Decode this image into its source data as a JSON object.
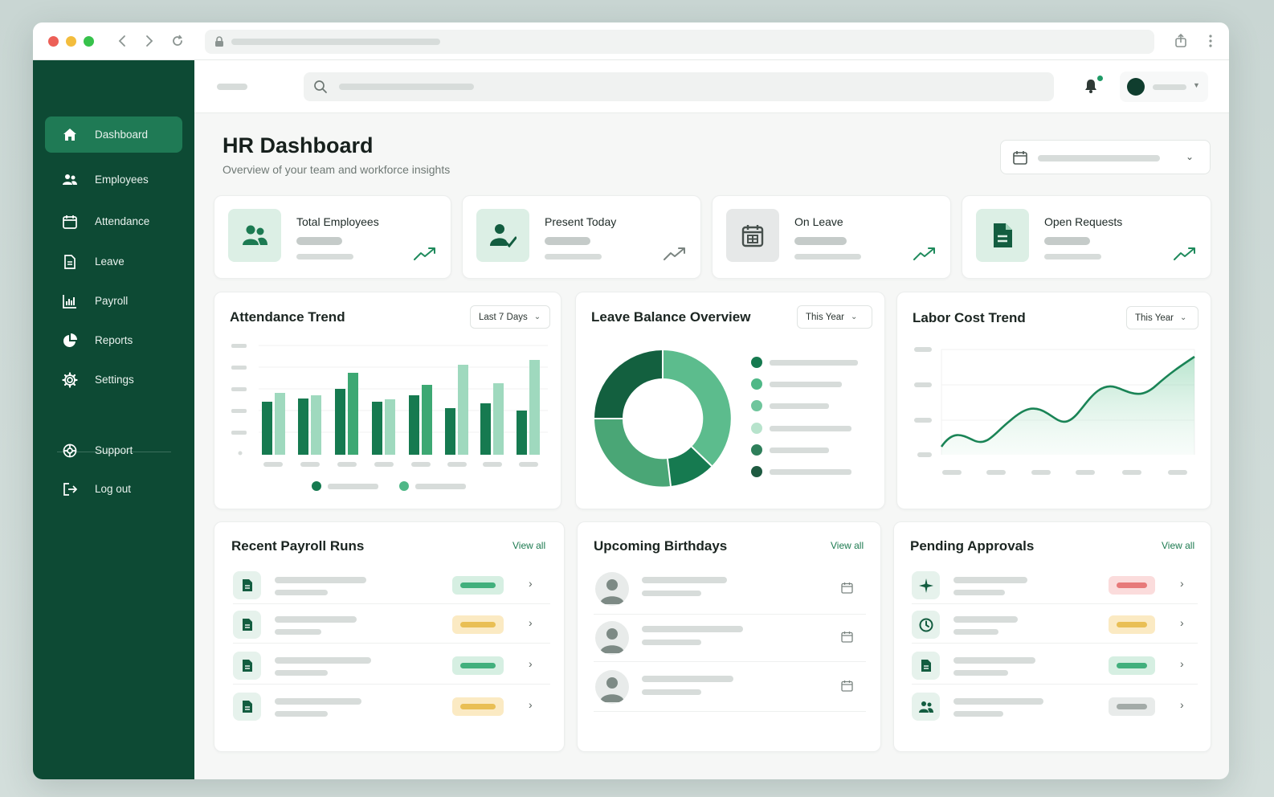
{
  "sidebar": {
    "items": [
      {
        "label": "Dashboard",
        "icon": "home-icon",
        "active": true
      },
      {
        "label": "Employees",
        "icon": "users-icon"
      },
      {
        "label": "Attendance",
        "icon": "calendar-icon"
      },
      {
        "label": "Leave",
        "icon": "document-icon"
      },
      {
        "label": "Payroll",
        "icon": "bar-chart-icon"
      },
      {
        "label": "Reports",
        "icon": "pie-chart-icon"
      },
      {
        "label": "Settings",
        "icon": "gear-icon"
      }
    ],
    "bottom_items": [
      {
        "label": "Support",
        "icon": "lifebuoy-icon"
      },
      {
        "label": "Log out",
        "icon": "logout-icon"
      }
    ]
  },
  "header": {
    "title": "HR Dashboard",
    "subtitle": "Overview of your team and workforce insights"
  },
  "kpis": [
    {
      "title": "Total Employees",
      "icon": "users-icon"
    },
    {
      "title": "Present Today",
      "icon": "user-check-icon"
    },
    {
      "title": "On Leave",
      "icon": "calendar-icon"
    },
    {
      "title": "Open Requests",
      "icon": "document-icon"
    }
  ],
  "attendance": {
    "title": "Attendance Trend",
    "range": "Last 7 Days"
  },
  "leave_balance": {
    "title": "Leave Balance Overview",
    "range": "This Year"
  },
  "labor_cost": {
    "title": "Labor Cost Trend",
    "range": "This Year"
  },
  "payroll": {
    "title": "Recent Payroll Runs",
    "view_all": "View all",
    "rows": [
      {
        "status": "green"
      },
      {
        "status": "yellow"
      },
      {
        "status": "green"
      },
      {
        "status": "yellow"
      }
    ]
  },
  "birthdays": {
    "title": "Upcoming Birthdays",
    "view_all": "View all"
  },
  "approvals": {
    "title": "Pending Approvals",
    "view_all": "View all",
    "rows": [
      {
        "icon": "plane-icon",
        "status": "red"
      },
      {
        "icon": "clock-icon",
        "status": "yellow"
      },
      {
        "icon": "document-icon",
        "status": "green"
      },
      {
        "icon": "users-icon",
        "status": "gray"
      }
    ]
  },
  "colors": {
    "sidebar": "#0d4a34",
    "accent": "#1f7a55",
    "green_dark": "#167a50",
    "green_mid": "#4fb887",
    "green_light": "#a8dcc3"
  }
}
